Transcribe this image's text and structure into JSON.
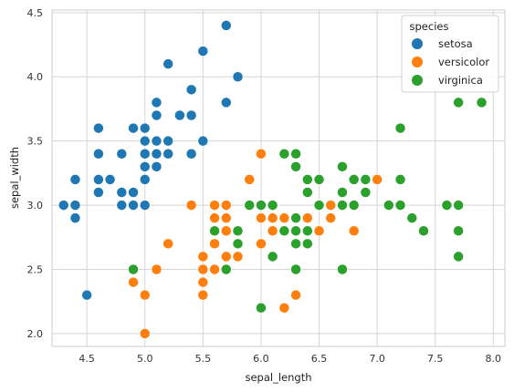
{
  "chart_data": {
    "type": "scatter",
    "title": "",
    "xlabel": "sepal_length",
    "ylabel": "sepal_width",
    "xlim": [
      4.2,
      8.1
    ],
    "ylim": [
      1.9,
      4.52
    ],
    "x_ticks": [
      4.5,
      5.0,
      5.5,
      6.0,
      6.5,
      7.0,
      7.5,
      8.0
    ],
    "x_tick_labels": [
      "4.5",
      "5.0",
      "5.5",
      "6.0",
      "6.5",
      "7.0",
      "7.5",
      "8.0"
    ],
    "y_ticks": [
      2.0,
      2.5,
      3.0,
      3.5,
      4.0,
      4.5
    ],
    "y_tick_labels": [
      "2.0",
      "2.5",
      "3.0",
      "3.5",
      "4.0",
      "4.5"
    ],
    "grid": true,
    "legend": {
      "title": "species",
      "placement": "top-right"
    },
    "series": [
      {
        "name": "setosa",
        "color": "#1f77b4",
        "points": [
          [
            4.3,
            3.0
          ],
          [
            4.4,
            3.2
          ],
          [
            4.4,
            3.0
          ],
          [
            4.4,
            2.9
          ],
          [
            4.5,
            2.3
          ],
          [
            4.6,
            3.6
          ],
          [
            4.6,
            3.4
          ],
          [
            4.6,
            3.2
          ],
          [
            4.6,
            3.1
          ],
          [
            4.7,
            3.2
          ],
          [
            4.8,
            3.4
          ],
          [
            4.8,
            3.1
          ],
          [
            4.8,
            3.0
          ],
          [
            4.9,
            3.6
          ],
          [
            4.9,
            3.1
          ],
          [
            4.9,
            3.0
          ],
          [
            5.0,
            3.6
          ],
          [
            5.0,
            3.5
          ],
          [
            5.0,
            3.4
          ],
          [
            5.0,
            3.3
          ],
          [
            5.0,
            3.2
          ],
          [
            5.0,
            3.0
          ],
          [
            5.1,
            3.8
          ],
          [
            5.1,
            3.7
          ],
          [
            5.1,
            3.5
          ],
          [
            5.1,
            3.4
          ],
          [
            5.1,
            3.3
          ],
          [
            5.2,
            4.1
          ],
          [
            5.2,
            3.5
          ],
          [
            5.2,
            3.4
          ],
          [
            5.3,
            3.7
          ],
          [
            5.4,
            3.9
          ],
          [
            5.4,
            3.7
          ],
          [
            5.4,
            3.4
          ],
          [
            5.5,
            4.2
          ],
          [
            5.5,
            3.5
          ],
          [
            5.7,
            4.4
          ],
          [
            5.7,
            3.8
          ],
          [
            5.8,
            4.0
          ]
        ]
      },
      {
        "name": "versicolor",
        "color": "#ff7f0e",
        "points": [
          [
            4.9,
            2.4
          ],
          [
            5.0,
            2.3
          ],
          [
            5.0,
            2.0
          ],
          [
            5.1,
            2.5
          ],
          [
            5.2,
            2.7
          ],
          [
            5.4,
            3.0
          ],
          [
            5.5,
            2.6
          ],
          [
            5.5,
            2.5
          ],
          [
            5.5,
            2.4
          ],
          [
            5.5,
            2.3
          ],
          [
            5.6,
            3.0
          ],
          [
            5.6,
            2.9
          ],
          [
            5.6,
            2.7
          ],
          [
            5.6,
            2.5
          ],
          [
            5.7,
            3.0
          ],
          [
            5.7,
            2.9
          ],
          [
            5.7,
            2.8
          ],
          [
            5.7,
            2.6
          ],
          [
            5.8,
            2.7
          ],
          [
            5.8,
            2.6
          ],
          [
            5.9,
            3.2
          ],
          [
            5.9,
            3.0
          ],
          [
            6.0,
            3.4
          ],
          [
            6.0,
            2.9
          ],
          [
            6.0,
            2.7
          ],
          [
            6.1,
            3.0
          ],
          [
            6.1,
            2.9
          ],
          [
            6.1,
            2.8
          ],
          [
            6.2,
            2.9
          ],
          [
            6.2,
            2.2
          ],
          [
            6.3,
            2.9
          ],
          [
            6.3,
            2.5
          ],
          [
            6.3,
            2.3
          ],
          [
            6.4,
            2.9
          ],
          [
            6.5,
            2.8
          ],
          [
            6.6,
            3.0
          ],
          [
            6.6,
            2.9
          ],
          [
            6.7,
            3.1
          ],
          [
            6.7,
            3.0
          ],
          [
            6.8,
            2.8
          ],
          [
            6.9,
            3.1
          ],
          [
            7.0,
            3.2
          ]
        ]
      },
      {
        "name": "virginica",
        "color": "#2ca02c",
        "points": [
          [
            4.9,
            2.5
          ],
          [
            5.6,
            2.8
          ],
          [
            5.7,
            2.5
          ],
          [
            5.8,
            2.8
          ],
          [
            5.8,
            2.7
          ],
          [
            5.9,
            3.0
          ],
          [
            6.0,
            3.0
          ],
          [
            6.0,
            2.2
          ],
          [
            6.1,
            3.0
          ],
          [
            6.1,
            2.6
          ],
          [
            6.2,
            3.4
          ],
          [
            6.2,
            2.8
          ],
          [
            6.3,
            3.4
          ],
          [
            6.3,
            3.3
          ],
          [
            6.3,
            2.9
          ],
          [
            6.3,
            2.8
          ],
          [
            6.3,
            2.7
          ],
          [
            6.3,
            2.5
          ],
          [
            6.4,
            3.2
          ],
          [
            6.4,
            3.1
          ],
          [
            6.4,
            2.8
          ],
          [
            6.4,
            2.7
          ],
          [
            6.5,
            3.2
          ],
          [
            6.5,
            3.0
          ],
          [
            6.7,
            3.3
          ],
          [
            6.7,
            3.1
          ],
          [
            6.7,
            3.0
          ],
          [
            6.7,
            2.5
          ],
          [
            6.8,
            3.2
          ],
          [
            6.8,
            3.0
          ],
          [
            6.9,
            3.2
          ],
          [
            6.9,
            3.1
          ],
          [
            7.1,
            3.0
          ],
          [
            7.2,
            3.6
          ],
          [
            7.2,
            3.2
          ],
          [
            7.2,
            3.0
          ],
          [
            7.3,
            2.9
          ],
          [
            7.4,
            2.8
          ],
          [
            7.6,
            3.0
          ],
          [
            7.7,
            3.8
          ],
          [
            7.7,
            3.0
          ],
          [
            7.7,
            2.8
          ],
          [
            7.7,
            2.6
          ],
          [
            7.9,
            3.8
          ]
        ]
      }
    ]
  }
}
